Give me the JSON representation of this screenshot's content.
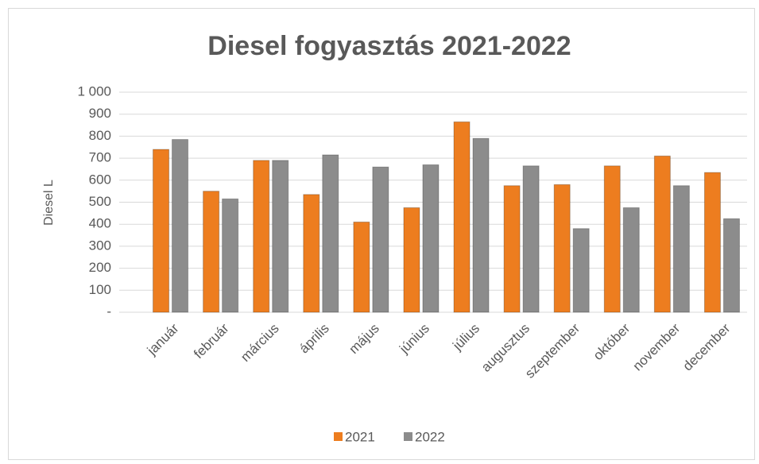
{
  "chart_data": {
    "type": "bar",
    "title": "Diesel fogyasztás 2021-2022",
    "y_label": "Diesel L",
    "categories": [
      "január",
      "február",
      "március",
      "április",
      "május",
      "június",
      "július",
      "augusztus",
      "szeptember",
      "október",
      "november",
      "december"
    ],
    "series": [
      {
        "name": "2021",
        "color": "#ed7d1f",
        "values": [
          740,
          550,
          690,
          535,
          410,
          475,
          865,
          575,
          580,
          665,
          710,
          635
        ]
      },
      {
        "name": "2022",
        "color": "#8c8c8c",
        "values": [
          785,
          515,
          690,
          715,
          660,
          670,
          790,
          665,
          380,
          475,
          575,
          425
        ]
      }
    ],
    "ylim": [
      0,
      1000
    ],
    "yticks": [
      {
        "value": 0,
        "label": "-"
      },
      100,
      200,
      300,
      400,
      500,
      600,
      700,
      800,
      900,
      {
        "value": 1000,
        "label": "1 000"
      }
    ],
    "grid": true,
    "legend": "bottom"
  }
}
